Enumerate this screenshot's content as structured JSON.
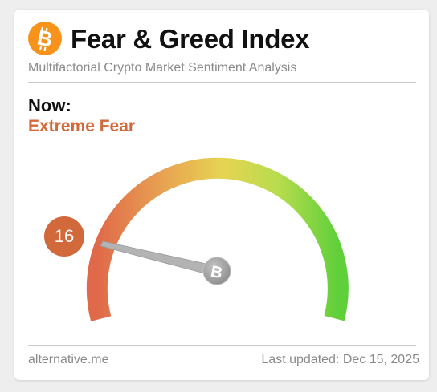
{
  "header": {
    "logo_icon": "bitcoin-icon",
    "title": "Fear & Greed Index",
    "subtitle": "Multifactorial Crypto Market Sentiment Analysis"
  },
  "status": {
    "now_label": "Now:",
    "classification": "Extreme Fear",
    "value": "16",
    "value_numeric": 16,
    "scale_min": 0,
    "scale_max": 100,
    "color": "#d2693a"
  },
  "gauge": {
    "needle_hub_icon": "bitcoin-icon",
    "gradient_colors": [
      "#e0694a",
      "#e8b050",
      "#e6e04a",
      "#9fd84a",
      "#5fcf3a"
    ]
  },
  "footer": {
    "source": "alternative.me",
    "last_updated": "Last updated: Dec 15, 2025"
  }
}
